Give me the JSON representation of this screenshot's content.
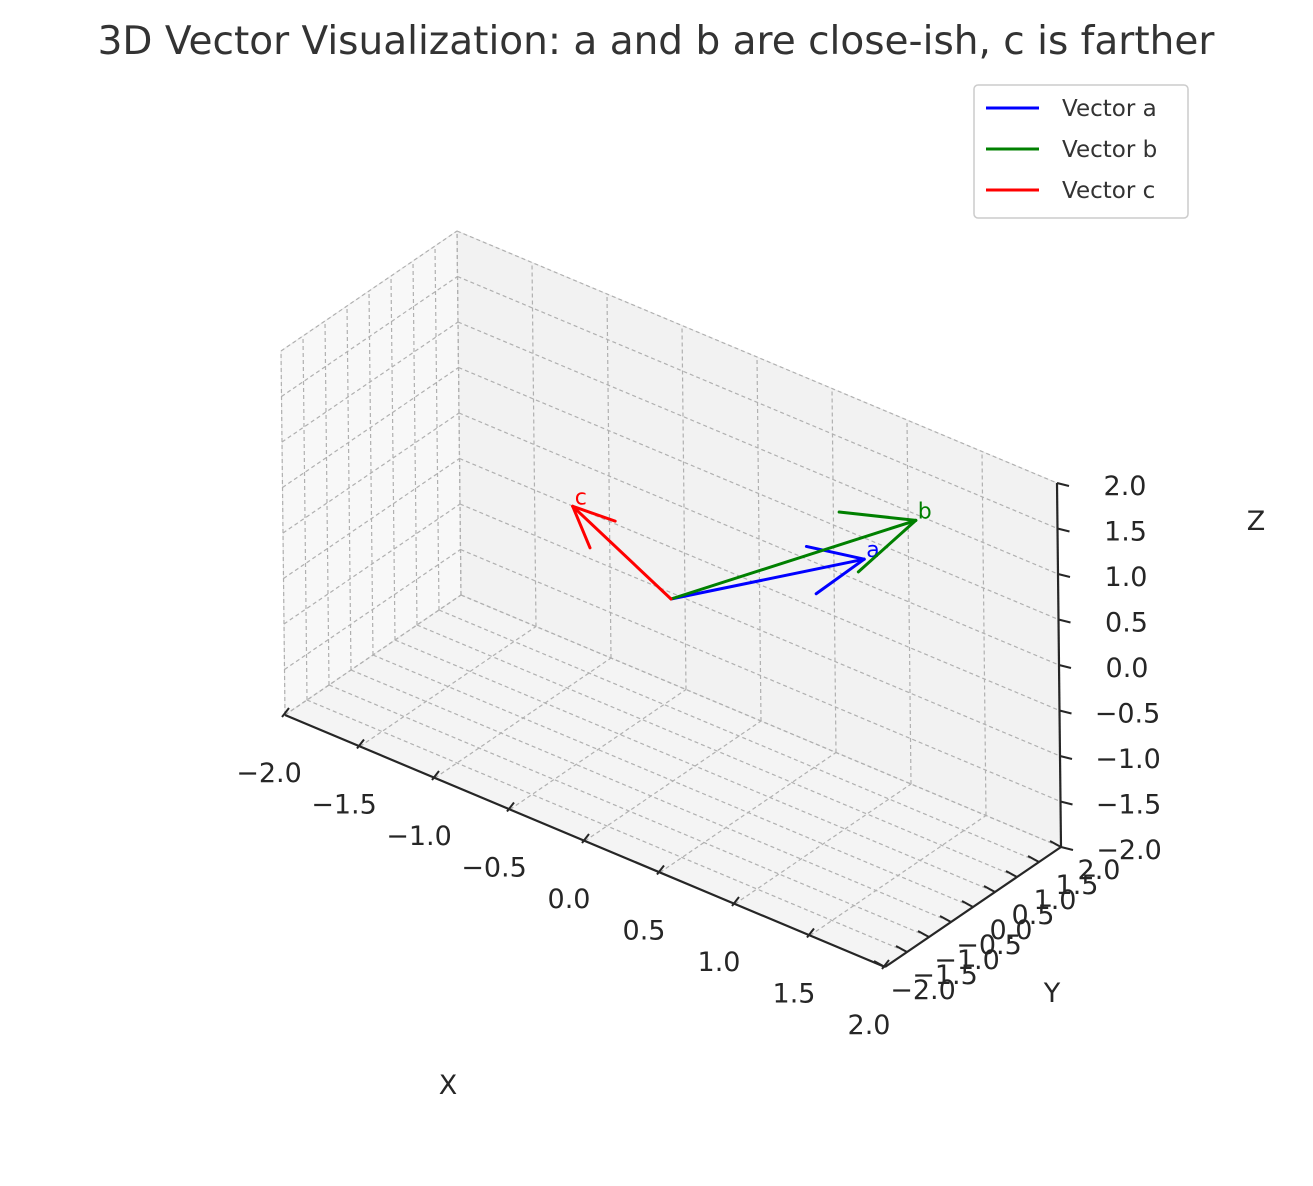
{
  "chart_data": {
    "type": "3d-quiver",
    "title": "3D Vector Visualization: a and b are close-ish, c is farther",
    "xlabel": "X",
    "ylabel": "Y",
    "zlabel": "Z",
    "xlim": [
      -2.0,
      2.0
    ],
    "ylim": [
      -2.0,
      2.0
    ],
    "zlim": [
      -2.0,
      2.0
    ],
    "x_ticks": [
      "−2.0",
      "−1.5",
      "−1.0",
      "−0.5",
      "0.0",
      "0.5",
      "1.0",
      "1.5",
      "2.0"
    ],
    "y_ticks": [
      "−2.0",
      "−1.5",
      "−1.0",
      "−0.5",
      "0.0",
      "0.5",
      "1.0",
      "1.5",
      "2.0"
    ],
    "z_ticks": [
      "−2.0",
      "−1.5",
      "−1.0",
      "−0.5",
      "0.0",
      "0.5",
      "1.0",
      "1.5",
      "2.0"
    ],
    "grid": true,
    "legend_position": "top-right",
    "origin": [
      0,
      0,
      0
    ],
    "series": [
      {
        "name": "Vector a",
        "label": "a",
        "color": "#0000ff",
        "vector": [
          1.0,
          1.0,
          0.8
        ]
      },
      {
        "name": "Vector b",
        "label": "b",
        "color": "#008000",
        "vector": [
          1.2,
          1.5,
          1.2
        ]
      },
      {
        "name": "Vector c",
        "label": "c",
        "color": "#ff0000",
        "vector": [
          -0.8,
          0.5,
          0.3
        ]
      }
    ]
  }
}
